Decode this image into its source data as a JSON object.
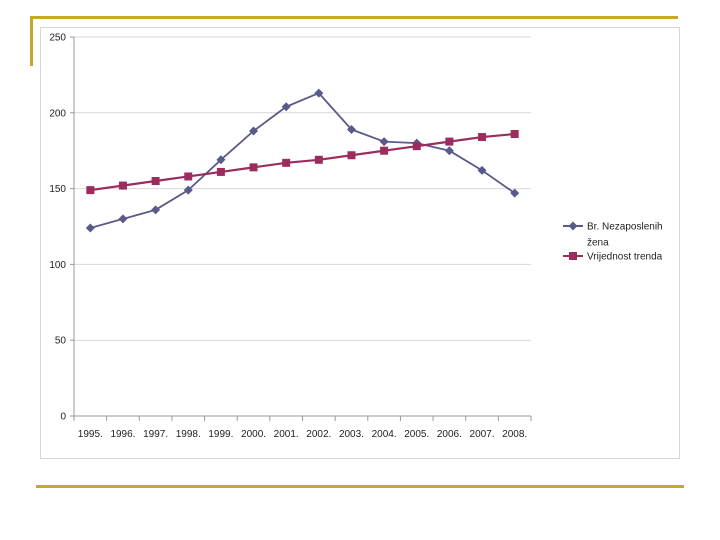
{
  "chart_data": {
    "type": "line",
    "title": "",
    "xlabel": "",
    "ylabel": "",
    "categories": [
      "1995.",
      "1996.",
      "1997.",
      "1998.",
      "1999.",
      "2000.",
      "2001.",
      "2002.",
      "2003.",
      "2004.",
      "2005.",
      "2006.",
      "2007.",
      "2008."
    ],
    "ylim": [
      0,
      250
    ],
    "yticks": [
      0,
      50,
      100,
      150,
      200,
      250
    ],
    "grid": true,
    "legend_position": "right",
    "series": [
      {
        "name": "Br. Nezaposlenih žena",
        "legend_lines": [
          "Br. Nezaposlenih",
          "žena"
        ],
        "marker": "diamond",
        "color": "#5a5a8a",
        "values": [
          124,
          130,
          136,
          149,
          169,
          188,
          204,
          213,
          189,
          181,
          180,
          175,
          162,
          147
        ]
      },
      {
        "name": "Vrijednost trenda",
        "legend_lines": [
          "Vrijednost trenda"
        ],
        "marker": "square",
        "color": "#9b2c5e",
        "values": [
          149,
          152,
          155,
          158,
          161,
          164,
          167,
          169,
          172,
          175,
          178,
          181,
          184,
          186
        ]
      }
    ]
  }
}
